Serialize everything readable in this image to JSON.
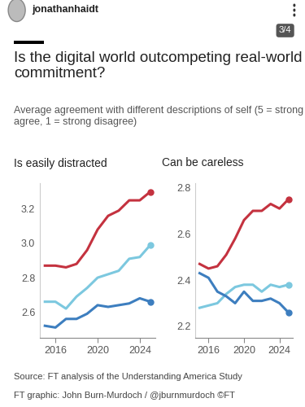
{
  "header": {
    "account": "jonathanhaidt",
    "page": "3/4"
  },
  "title": "Is the digital world outcompeting real-world commitment?",
  "subtitle": "Average agreement with different descriptions of self (5 = strong agree, 1 = strong disagree)",
  "source": "Source: FT analysis of the Understanding America Study",
  "credit": "FT graphic: John Burn-Murdoch / @jburnmurdoch ©FT",
  "chart_data": [
    {
      "type": "line",
      "title": "Is easily distracted",
      "x": [
        2015,
        2016,
        2017,
        2018,
        2019,
        2020,
        2021,
        2022,
        2023,
        2024,
        2025
      ],
      "xlim": [
        2014.5,
        2025.5
      ],
      "xticks": [
        2016,
        2020,
        2024
      ],
      "ylim": [
        2.45,
        3.35
      ],
      "yticks": [
        2.6,
        2.8,
        3.0,
        3.2
      ],
      "series": [
        {
          "color": "#c4323f",
          "values": [
            2.87,
            2.87,
            2.86,
            2.88,
            2.96,
            3.08,
            3.16,
            3.19,
            3.25,
            3.25,
            3.3
          ]
        },
        {
          "color": "#7cc8df",
          "values": [
            2.66,
            2.66,
            2.62,
            2.69,
            2.74,
            2.8,
            2.82,
            2.84,
            2.91,
            2.92,
            2.99
          ]
        },
        {
          "color": "#3d7ebf",
          "values": [
            2.52,
            2.51,
            2.56,
            2.56,
            2.59,
            2.64,
            2.63,
            2.64,
            2.65,
            2.68,
            2.66
          ]
        }
      ]
    },
    {
      "type": "line",
      "title": "Can be careless",
      "x": [
        2015,
        2016,
        2017,
        2018,
        2019,
        2020,
        2021,
        2022,
        2023,
        2024,
        2025
      ],
      "xlim": [
        2014.5,
        2025.5
      ],
      "xticks": [
        2016,
        2020,
        2024
      ],
      "ylim": [
        2.15,
        2.82
      ],
      "yticks": [
        2.2,
        2.4,
        2.6,
        2.8
      ],
      "series": [
        {
          "color": "#c4323f",
          "values": [
            2.47,
            2.45,
            2.46,
            2.51,
            2.58,
            2.66,
            2.7,
            2.7,
            2.73,
            2.71,
            2.75
          ]
        },
        {
          "color": "#7cc8df",
          "values": [
            2.28,
            2.29,
            2.3,
            2.34,
            2.37,
            2.38,
            2.38,
            2.35,
            2.38,
            2.37,
            2.38
          ]
        },
        {
          "color": "#3d7ebf",
          "values": [
            2.43,
            2.41,
            2.35,
            2.33,
            2.3,
            2.35,
            2.31,
            2.31,
            2.32,
            2.3,
            2.26
          ]
        }
      ]
    }
  ]
}
